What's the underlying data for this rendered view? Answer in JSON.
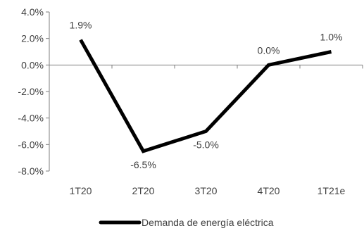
{
  "chart_data": {
    "type": "line",
    "title": "",
    "xlabel": "",
    "ylabel": "",
    "categories": [
      "1T20",
      "2T20",
      "3T20",
      "4T20",
      "1T21e"
    ],
    "series": [
      {
        "name": "Demanda de energía eléctrica",
        "values": [
          1.9,
          -6.5,
          -5.0,
          0.0,
          1.0
        ],
        "labels": [
          "1.9%",
          "-6.5%",
          "-5.0%",
          "0.0%",
          "1.0%"
        ],
        "color": "#000000"
      }
    ],
    "ylim": [
      -8.0,
      4.0
    ],
    "yticks": [
      4.0,
      2.0,
      0.0,
      -2.0,
      -4.0,
      -6.0,
      -8.0
    ],
    "ytick_labels": [
      "4.0%",
      "2.0%",
      "0.0%",
      "-2.0%",
      "-4.0%",
      "-6.0%",
      "-8.0%"
    ],
    "grid": false,
    "legend_position": "bottom"
  }
}
